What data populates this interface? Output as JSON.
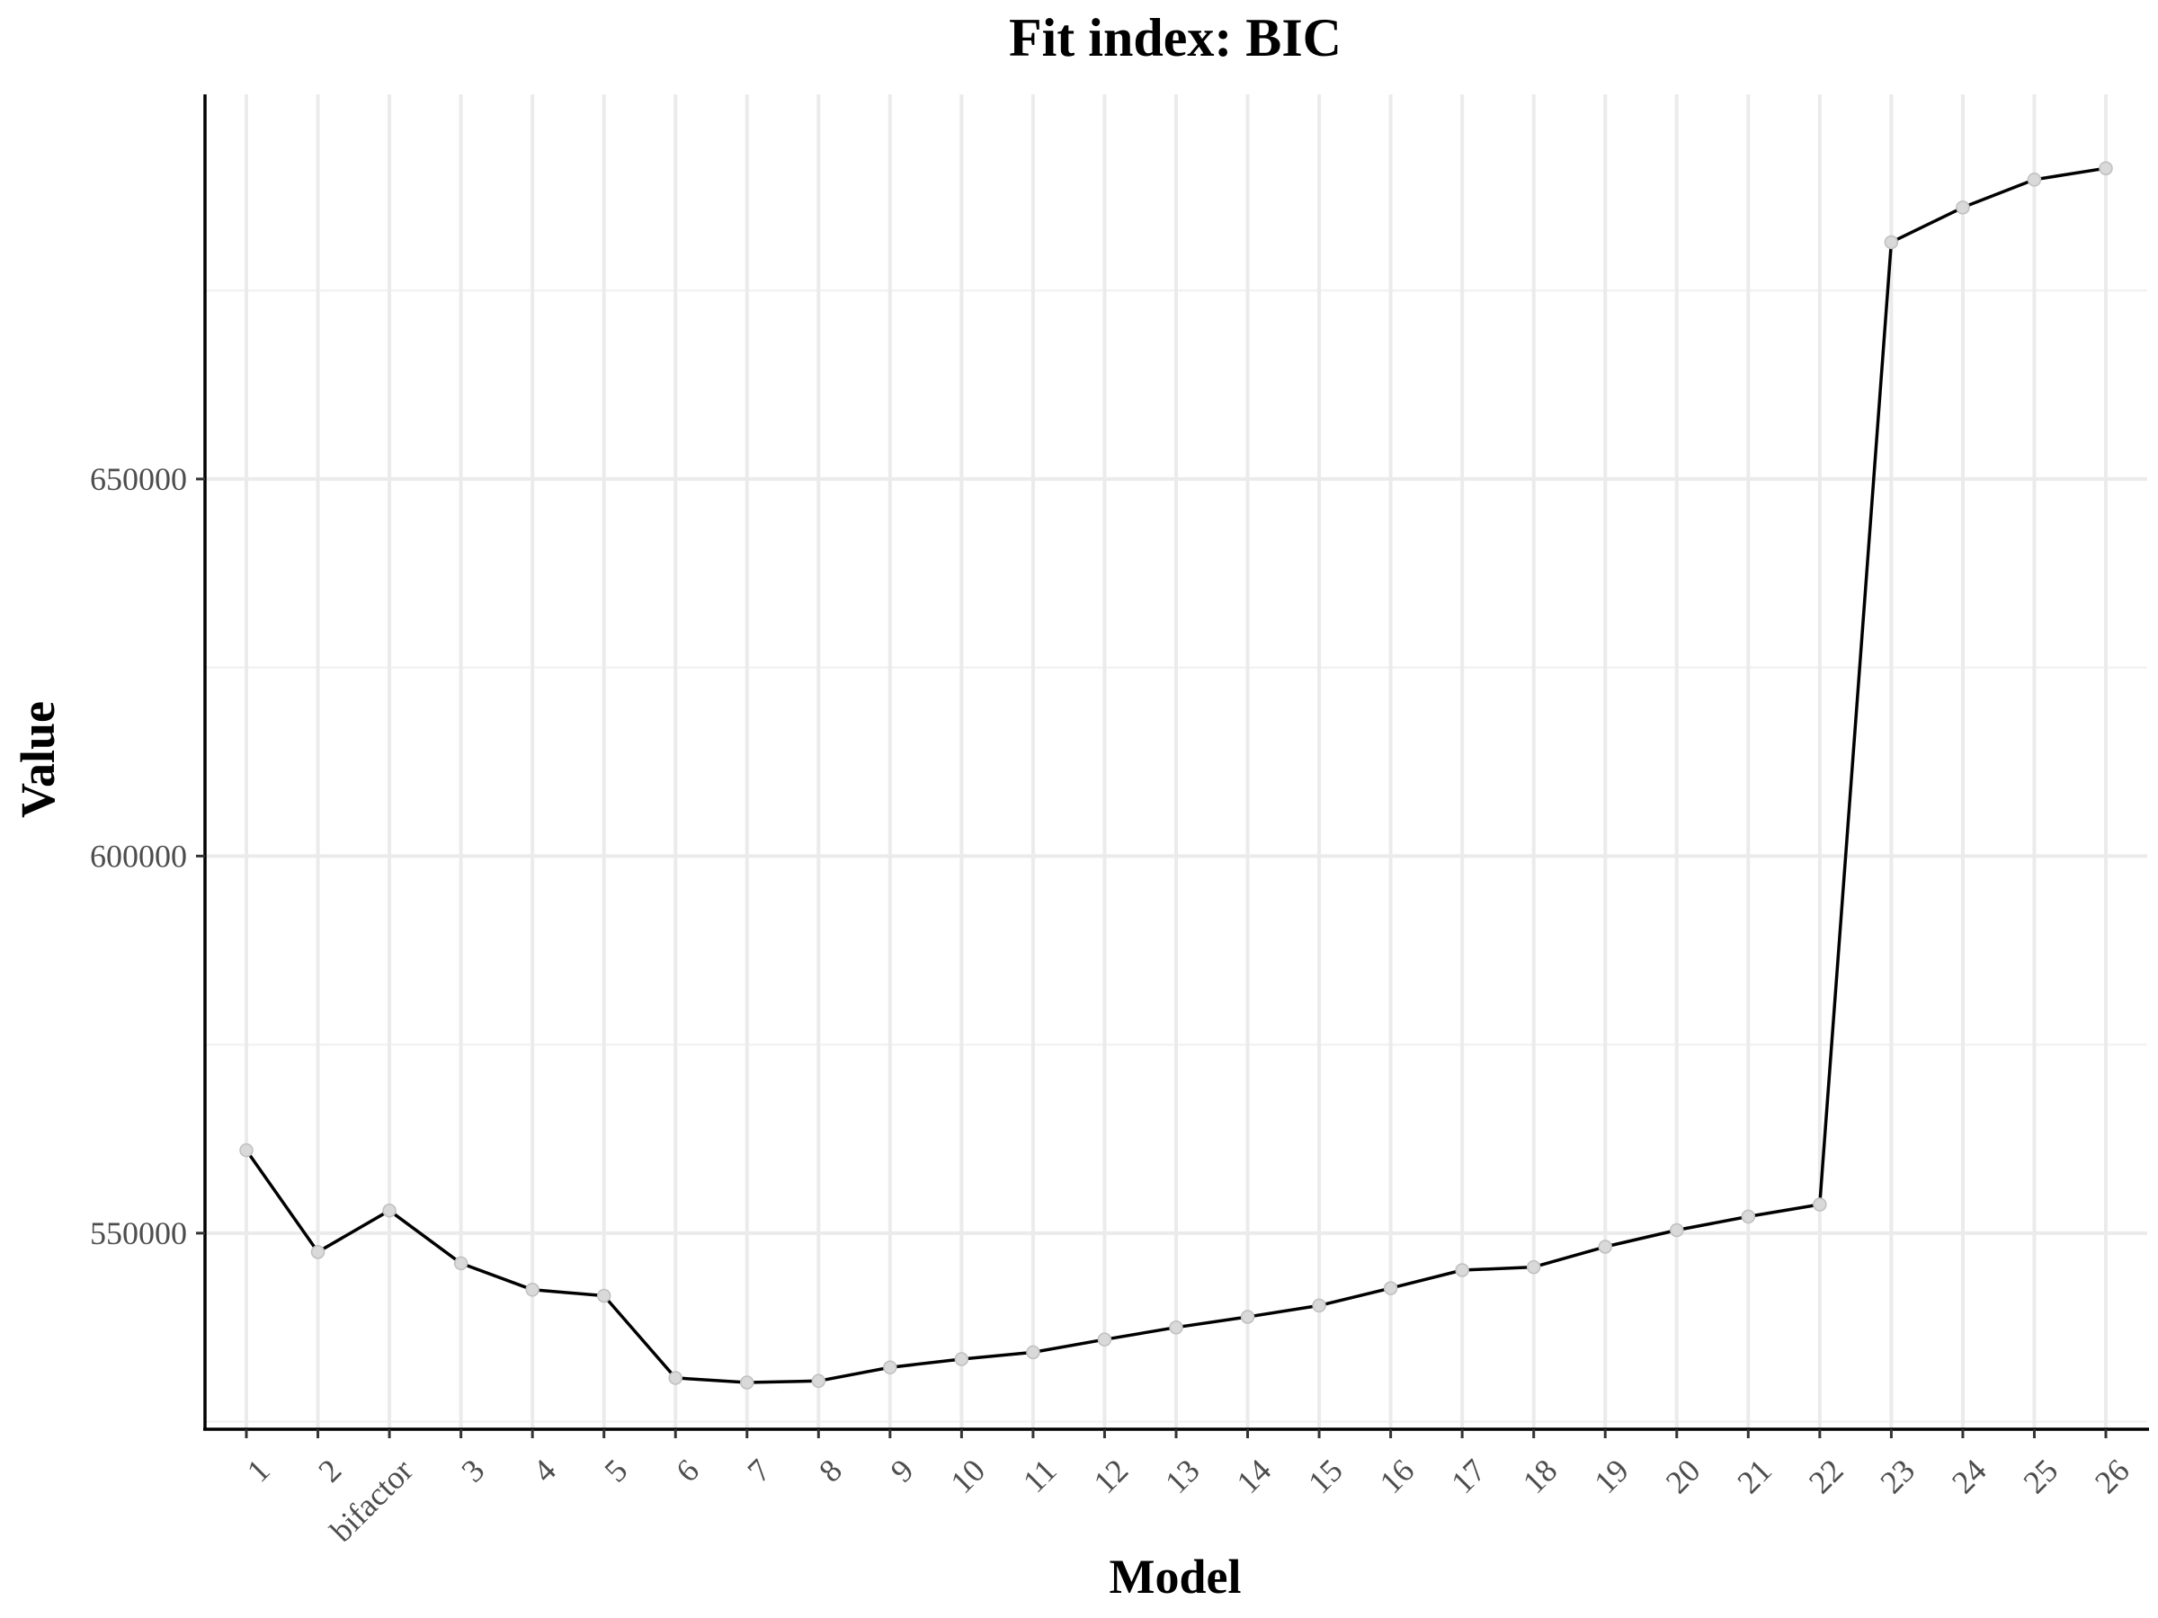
{
  "chart_data": {
    "type": "line",
    "title": "Fit index: BIC",
    "xlabel": "Model",
    "ylabel": "Value",
    "categories": [
      "1",
      "2",
      "bifactor",
      "3",
      "4",
      "5",
      "6",
      "7",
      "8",
      "9",
      "10",
      "11",
      "12",
      "13",
      "14",
      "15",
      "16",
      "17",
      "18",
      "19",
      "20",
      "21",
      "22",
      "23",
      "24",
      "25",
      "26"
    ],
    "series": [
      {
        "values": [
          561000,
          547500,
          553000,
          546000,
          542500,
          541700,
          530800,
          530200,
          530400,
          532200,
          533300,
          534200,
          535900,
          537500,
          538900,
          540400,
          542700,
          545100,
          545500,
          548200,
          550400,
          552200,
          553800,
          681400,
          686000,
          689700,
          691200
        ]
      }
    ],
    "ylim": [
      524000,
      701000
    ],
    "yticks": [
      550000,
      600000,
      650000
    ],
    "y_minor_ticks": [
      525000,
      575000,
      625000,
      675000
    ],
    "grid": true,
    "x_tick_rotation": -45,
    "colors": {
      "line": "#000000",
      "points": "#d9d9d9",
      "grid": "#ebebeb"
    }
  }
}
